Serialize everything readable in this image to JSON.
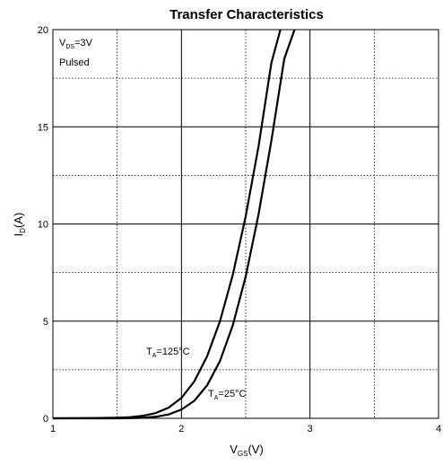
{
  "chart_data": {
    "type": "line",
    "title": "Transfer Characteristics",
    "xlabel_main": "V",
    "xlabel_sub": "GS",
    "xlabel_unit": "(V)",
    "ylabel_main": "I",
    "ylabel_sub": "D",
    "ylabel_unit": "(A)",
    "xlim": [
      1,
      4
    ],
    "ylim": [
      0,
      20
    ],
    "x_ticks": [
      1,
      2,
      3,
      4
    ],
    "y_ticks": [
      0,
      5,
      10,
      15,
      20
    ],
    "x_minor_grid": [
      1.5,
      2.5,
      3.5
    ],
    "y_minor_grid": [
      2.5,
      7.5,
      12.5,
      17.5
    ],
    "grid": true,
    "conditions": {
      "line1_main": "V",
      "line1_sub": "DS",
      "line1_rest": "=3V",
      "line2": "Pulsed"
    },
    "series": [
      {
        "name_main": "T",
        "name_sub": "A",
        "name_rest": "=125°C",
        "x": [
          1.0,
          1.3,
          1.5,
          1.6,
          1.7,
          1.8,
          1.9,
          2.0,
          2.1,
          2.2,
          2.3,
          2.4,
          2.5,
          2.6,
          2.7,
          2.77
        ],
        "y": [
          0.0,
          0.01,
          0.03,
          0.06,
          0.13,
          0.27,
          0.55,
          1.05,
          1.9,
          3.2,
          5.0,
          7.4,
          10.4,
          14.0,
          18.3,
          20.0
        ]
      },
      {
        "name_main": "T",
        "name_sub": "A",
        "name_rest": "=25°C",
        "x": [
          1.0,
          1.5,
          1.6,
          1.7,
          1.8,
          1.9,
          2.0,
          2.1,
          2.2,
          2.3,
          2.4,
          2.5,
          2.6,
          2.7,
          2.8,
          2.88
        ],
        "y": [
          0.0,
          0.0,
          0.01,
          0.03,
          0.08,
          0.2,
          0.45,
          0.9,
          1.7,
          2.95,
          4.8,
          7.3,
          10.5,
          14.3,
          18.5,
          20.0
        ]
      }
    ]
  }
}
